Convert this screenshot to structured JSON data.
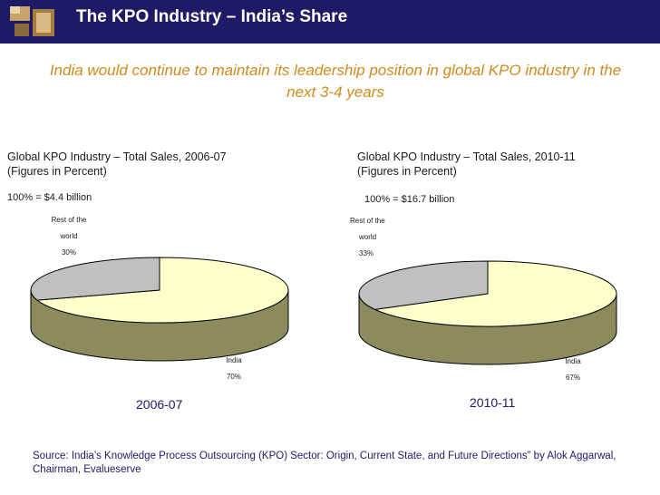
{
  "header": {
    "title": "The KPO Industry – India’s Share"
  },
  "subtitle": "India would continue to maintain its leadership position in global KPO industry in the next 3-4 years",
  "colors": {
    "header_bg": "#1f1a66",
    "india": "#ffffcc",
    "rest": "#c0c0c0",
    "side_india": "#8c8b5e",
    "side_rest": "#6b6a44",
    "subtitle": "#d08a1e"
  },
  "chart_data": [
    {
      "type": "pie",
      "title_line1": "Global KPO Industry – Total Sales, 2006-07",
      "title_line2": "(Figures in Percent)",
      "total_note": "100% = $4.4 billion",
      "year_label": "2006-07",
      "slices": [
        {
          "name": "India",
          "value": 70,
          "value_label": "70%"
        },
        {
          "name_line1": "Rest of the",
          "name_line2": "world",
          "value": 30,
          "value_label": "30%"
        }
      ]
    },
    {
      "type": "pie",
      "title_line1": "Global KPO Industry – Total Sales, 2010-11",
      "title_line2": "(Figures in Percent)",
      "total_note": "100% = $16.7 billion",
      "year_label": "2010-11",
      "slices": [
        {
          "name": "India",
          "value": 67,
          "value_label": "67%"
        },
        {
          "name_line1": "Rest of the",
          "name_line2": "world",
          "value": 33,
          "value_label": "33%"
        }
      ]
    }
  ],
  "source": "Source: India’s Knowledge Process Outsourcing (KPO) Sector: Origin, Current State, and Future Directions” by Alok Aggarwal, Chairman, Evalueserve"
}
